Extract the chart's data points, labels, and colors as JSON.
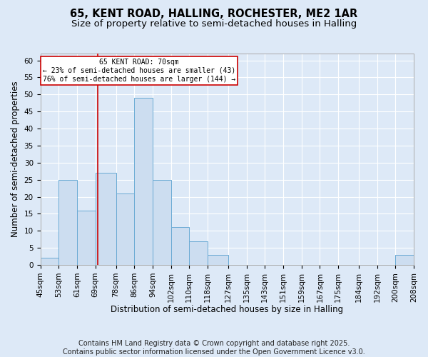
{
  "title1": "65, KENT ROAD, HALLING, ROCHESTER, ME2 1AR",
  "title2": "Size of property relative to semi-detached houses in Halling",
  "xlabel": "Distribution of semi-detached houses by size in Halling",
  "ylabel": "Number of semi-detached properties",
  "bin_edges": [
    45,
    53,
    61,
    69,
    78,
    86,
    94,
    102,
    110,
    118,
    127,
    135,
    143,
    151,
    159,
    167,
    175,
    184,
    192,
    200,
    208
  ],
  "bar_heights": [
    2,
    25,
    16,
    27,
    21,
    49,
    25,
    11,
    7,
    3,
    0,
    0,
    0,
    0,
    0,
    0,
    0,
    0,
    0,
    3
  ],
  "bar_color": "#ccddf0",
  "bar_edge_color": "#6aaad4",
  "property_size": 70,
  "annotation_title": "65 KENT ROAD: 70sqm",
  "annotation_line1": "← 23% of semi-detached houses are smaller (43)",
  "annotation_line2": "76% of semi-detached houses are larger (144) →",
  "red_line_color": "#cc0000",
  "annotation_box_facecolor": "#ffffff",
  "annotation_box_edgecolor": "#cc0000",
  "ylim": [
    0,
    62
  ],
  "yticks": [
    0,
    5,
    10,
    15,
    20,
    25,
    30,
    35,
    40,
    45,
    50,
    55,
    60
  ],
  "footer_line1": "Contains HM Land Registry data © Crown copyright and database right 2025.",
  "footer_line2": "Contains public sector information licensed under the Open Government Licence v3.0.",
  "background_color": "#dde9f7",
  "plot_bg_color": "#dde9f7",
  "grid_color": "#ffffff",
  "title_fontsize": 10.5,
  "subtitle_fontsize": 9.5,
  "axis_label_fontsize": 8.5,
  "tick_fontsize": 7.5,
  "footer_fontsize": 7
}
